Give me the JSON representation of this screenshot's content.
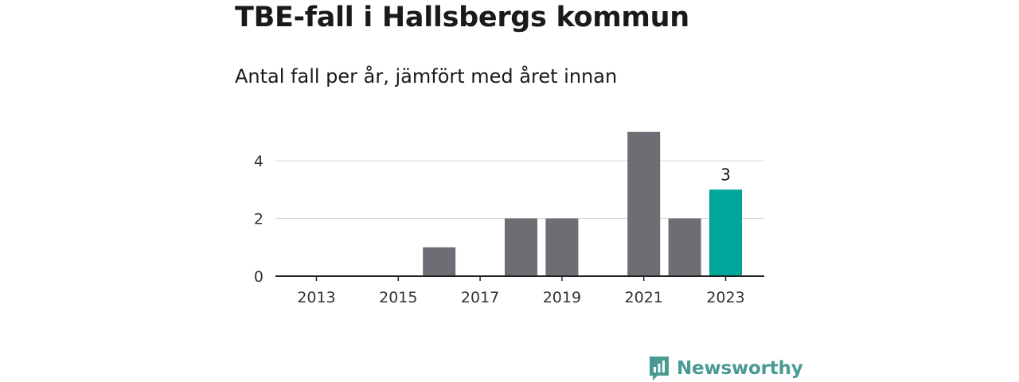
{
  "title": "TBE-fall i Hallsbergs kommun",
  "subtitle": "Antal fall per år, jämfört med året innan",
  "brand": {
    "name": "Newsworthy",
    "color": "#4a9a94",
    "icon": "newsworthy-logo-icon"
  },
  "colors": {
    "bar": "#6e6d73",
    "highlight": "#00a699",
    "grid": "#d9d9d9",
    "axis": "#222222"
  },
  "chart_data": {
    "type": "bar",
    "categories": [
      "2013",
      "2014",
      "2015",
      "2016",
      "2017",
      "2018",
      "2019",
      "2020",
      "2021",
      "2022",
      "2023"
    ],
    "values": [
      0,
      0,
      0,
      1,
      0,
      2,
      2,
      0,
      5,
      2,
      3
    ],
    "highlight_category": "2023",
    "data_labels": [
      {
        "category": "2023",
        "text": "3"
      }
    ],
    "x_tick_labels": [
      "2013",
      "2015",
      "2017",
      "2019",
      "2021",
      "2023"
    ],
    "y_ticks": [
      0,
      2,
      4
    ],
    "ylim": [
      0,
      5
    ],
    "grid": true,
    "xlabel": "",
    "ylabel": ""
  }
}
